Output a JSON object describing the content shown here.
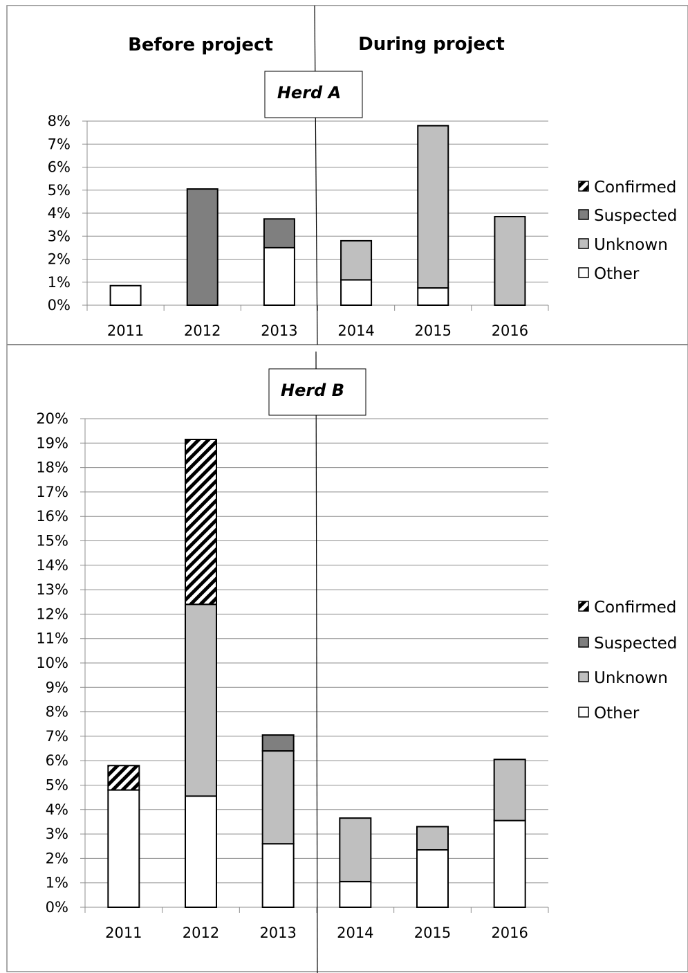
{
  "header": {
    "before_label": "Before project",
    "during_label": "During project"
  },
  "chart_data": [
    {
      "type": "bar",
      "stacked": true,
      "title": "Herd A",
      "categories": [
        "2011",
        "2012",
        "2013",
        "2014",
        "2015",
        "2016"
      ],
      "ylim": [
        0,
        8
      ],
      "y_ticks": [
        "0%",
        "1%",
        "2%",
        "3%",
        "4%",
        "5%",
        "6%",
        "7%",
        "8%"
      ],
      "grid": true,
      "legend_position": "right",
      "series": [
        {
          "name": "Other",
          "color": "#ffffff",
          "values": [
            0.85,
            0,
            2.5,
            1.1,
            0.75,
            0
          ]
        },
        {
          "name": "Unknown",
          "color": "#bfbfbf",
          "values": [
            0,
            0,
            0,
            1.7,
            7.05,
            3.85
          ]
        },
        {
          "name": "Suspected",
          "color": "#7f7f7f",
          "values": [
            0,
            5.05,
            1.25,
            0,
            0,
            0
          ]
        },
        {
          "name": "Confirmed",
          "color": "hatch",
          "values": [
            0,
            0,
            0,
            0,
            0,
            0
          ]
        }
      ]
    },
    {
      "type": "bar",
      "stacked": true,
      "title": "Herd B",
      "categories": [
        "2011",
        "2012",
        "2013",
        "2014",
        "2015",
        "2016"
      ],
      "ylim": [
        0,
        20
      ],
      "y_ticks": [
        "0%",
        "1%",
        "2%",
        "3%",
        "4%",
        "5%",
        "6%",
        "7%",
        "8%",
        "9%",
        "10%",
        "11%",
        "12%",
        "13%",
        "14%",
        "15%",
        "16%",
        "17%",
        "18%",
        "19%",
        "20%"
      ],
      "grid": true,
      "legend_position": "right",
      "series": [
        {
          "name": "Other",
          "color": "#ffffff",
          "values": [
            4.8,
            4.55,
            2.6,
            1.05,
            2.35,
            3.55
          ]
        },
        {
          "name": "Unknown",
          "color": "#bfbfbf",
          "values": [
            0,
            7.85,
            3.8,
            2.6,
            0.95,
            2.5
          ]
        },
        {
          "name": "Suspected",
          "color": "#7f7f7f",
          "values": [
            0,
            0,
            0.65,
            0,
            0,
            0
          ]
        },
        {
          "name": "Confirmed",
          "color": "hatch",
          "values": [
            1.0,
            6.75,
            0,
            0,
            0,
            0
          ]
        }
      ]
    }
  ]
}
